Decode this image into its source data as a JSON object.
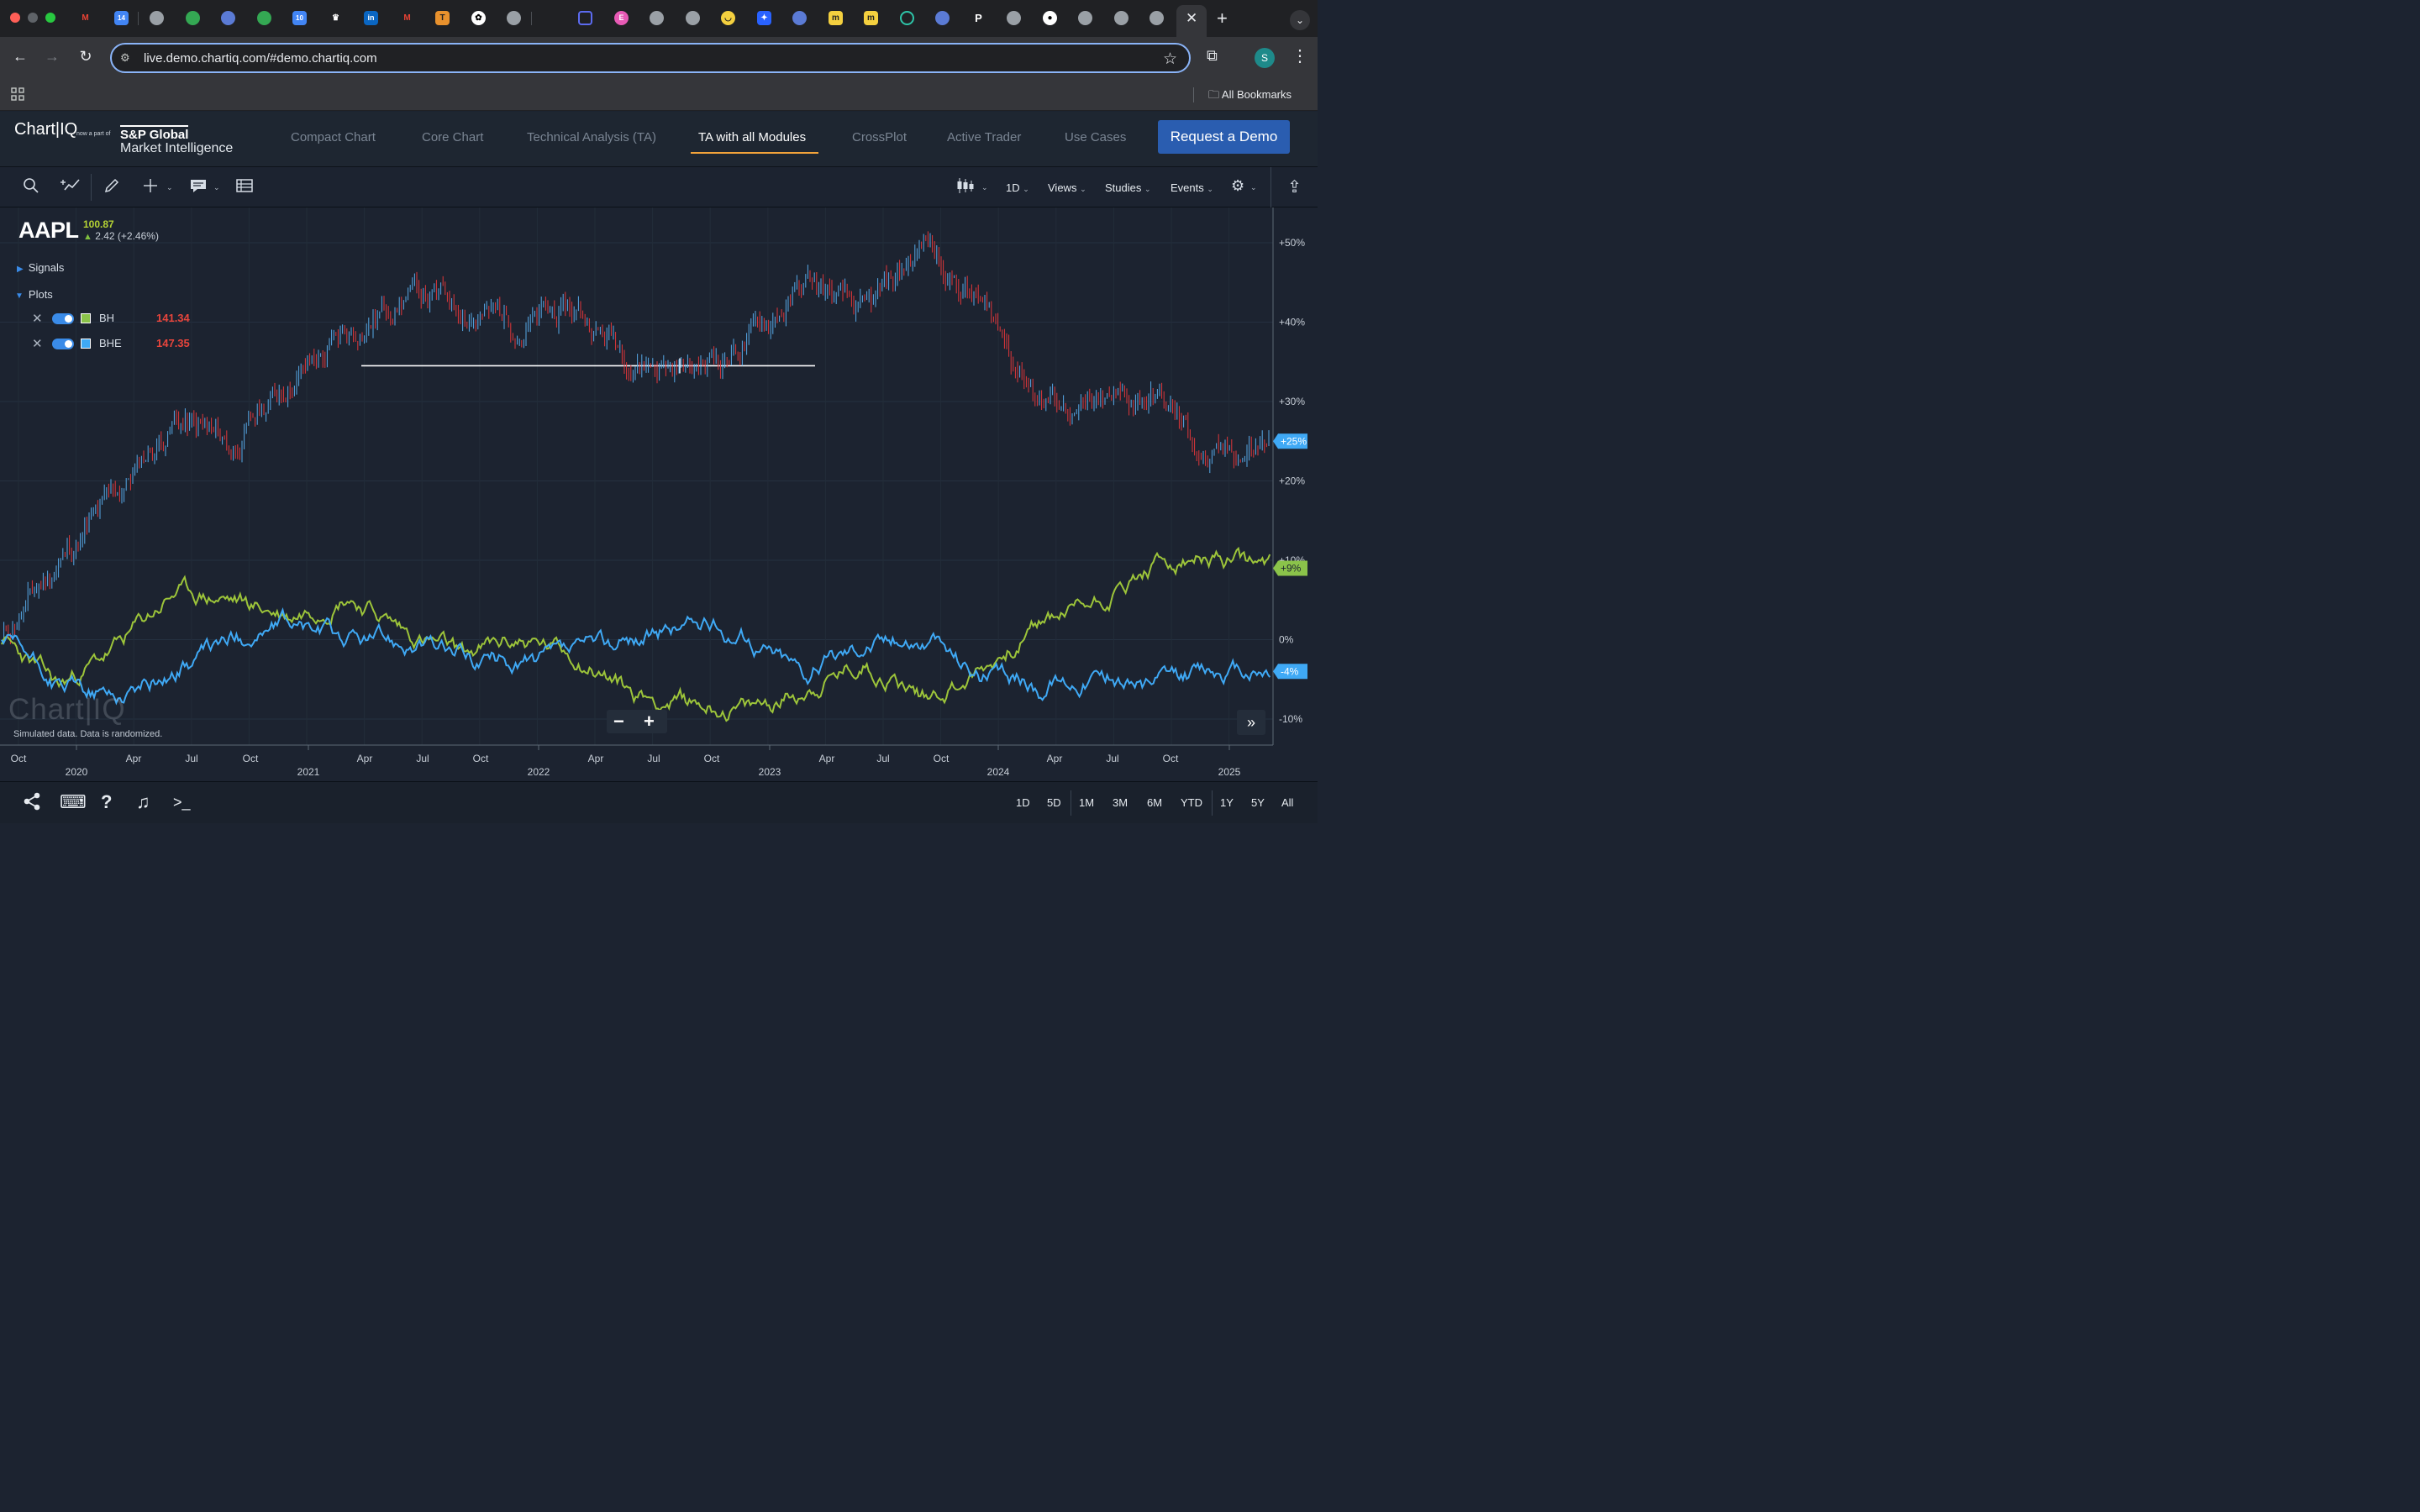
{
  "browser": {
    "url": "live.demo.chartiq.com/#demo.chartiq.com",
    "bookmarks_label": "All Bookmarks",
    "profile_initial": "S"
  },
  "header": {
    "logo_text": "Chart|IQ",
    "logo_part": "now a part of",
    "logo_sp": "S&P Global",
    "logo_mi": "Market Intelligence",
    "nav": [
      "Compact Chart",
      "Core Chart",
      "Technical Analysis (TA)",
      "TA with all Modules",
      "CrossPlot",
      "Active Trader",
      "Use Cases"
    ],
    "active_nav": "TA with all Modules",
    "demo_button": "Request a Demo"
  },
  "toolbar": {
    "interval": "1D",
    "views": "Views",
    "studies": "Studies",
    "events": "Events"
  },
  "quote": {
    "symbol": "AAPL",
    "price": "100.87",
    "change": "2.42 (+2.46%)"
  },
  "panel": {
    "signals": "Signals",
    "plots": "Plots",
    "series": [
      {
        "name": "BH",
        "value": "141.34",
        "color": "#8bc34a"
      },
      {
        "name": "BHE",
        "value": "147.35",
        "color": "#3fa9f5"
      }
    ]
  },
  "chart": {
    "watermark": "Chart|IQ",
    "disclaimer": "Simulated data.  Data is randomized.",
    "y_axis": [
      "+50%",
      "+40%",
      "+30%",
      "+20%",
      "+10%",
      "0%",
      "-10%"
    ],
    "badges": [
      {
        "label": "+25%",
        "color": "#3fa9f5"
      },
      {
        "label": "+9%",
        "color": "#8bc34a"
      },
      {
        "label": "-4%",
        "color": "#3fa9f5"
      }
    ],
    "x_months": [
      "Oct",
      "Apr",
      "Jul",
      "Oct",
      "Apr",
      "Jul",
      "Oct",
      "Apr",
      "Jul",
      "Oct",
      "Apr",
      "Jul",
      "Oct",
      "Apr",
      "Jul",
      "Oct"
    ],
    "x_years": [
      "2020",
      "2021",
      "2022",
      "2023",
      "2024",
      "2025"
    ]
  },
  "chart_data": {
    "type": "line",
    "ylabel": "",
    "ylim": [
      -13,
      53
    ],
    "y_unit": "%",
    "x": [
      "2019-10",
      "2020-01",
      "2020-04",
      "2020-07",
      "2020-10",
      "2021-01",
      "2021-04",
      "2021-07",
      "2021-10",
      "2022-01",
      "2022-04",
      "2022-07",
      "2022-10",
      "2023-01",
      "2023-04",
      "2023-07",
      "2023-10",
      "2024-01",
      "2024-04",
      "2024-07",
      "2024-10",
      "2025-01",
      "2025-03"
    ],
    "series": [
      {
        "name": "AAPL",
        "style": "candles",
        "values": [
          0,
          10,
          18,
          28,
          24,
          33,
          38,
          44,
          42,
          40,
          41,
          36,
          34,
          38,
          45,
          40,
          50,
          42,
          31,
          28,
          31,
          22,
          25
        ]
      },
      {
        "name": "BH",
        "values": [
          0,
          -6,
          -1,
          6,
          5,
          3,
          6,
          1,
          -2,
          0,
          -2,
          -7,
          -8,
          -9,
          -6,
          -3,
          -7,
          -4,
          2,
          5,
          9,
          10,
          9
        ]
      },
      {
        "name": "BHE",
        "values": [
          0,
          -6,
          -7,
          -4,
          0,
          2,
          0,
          0,
          -2,
          -3,
          -2,
          0,
          2,
          0,
          -4,
          0,
          0,
          -4,
          -6,
          -4,
          -6,
          -4,
          -4
        ]
      }
    ],
    "annotations": [
      {
        "type": "horizontal-line",
        "y": 34.5
      }
    ]
  },
  "footer": {
    "ranges": [
      "1D",
      "5D",
      "1M",
      "3M",
      "6M",
      "YTD",
      "1Y",
      "5Y",
      "All"
    ]
  }
}
